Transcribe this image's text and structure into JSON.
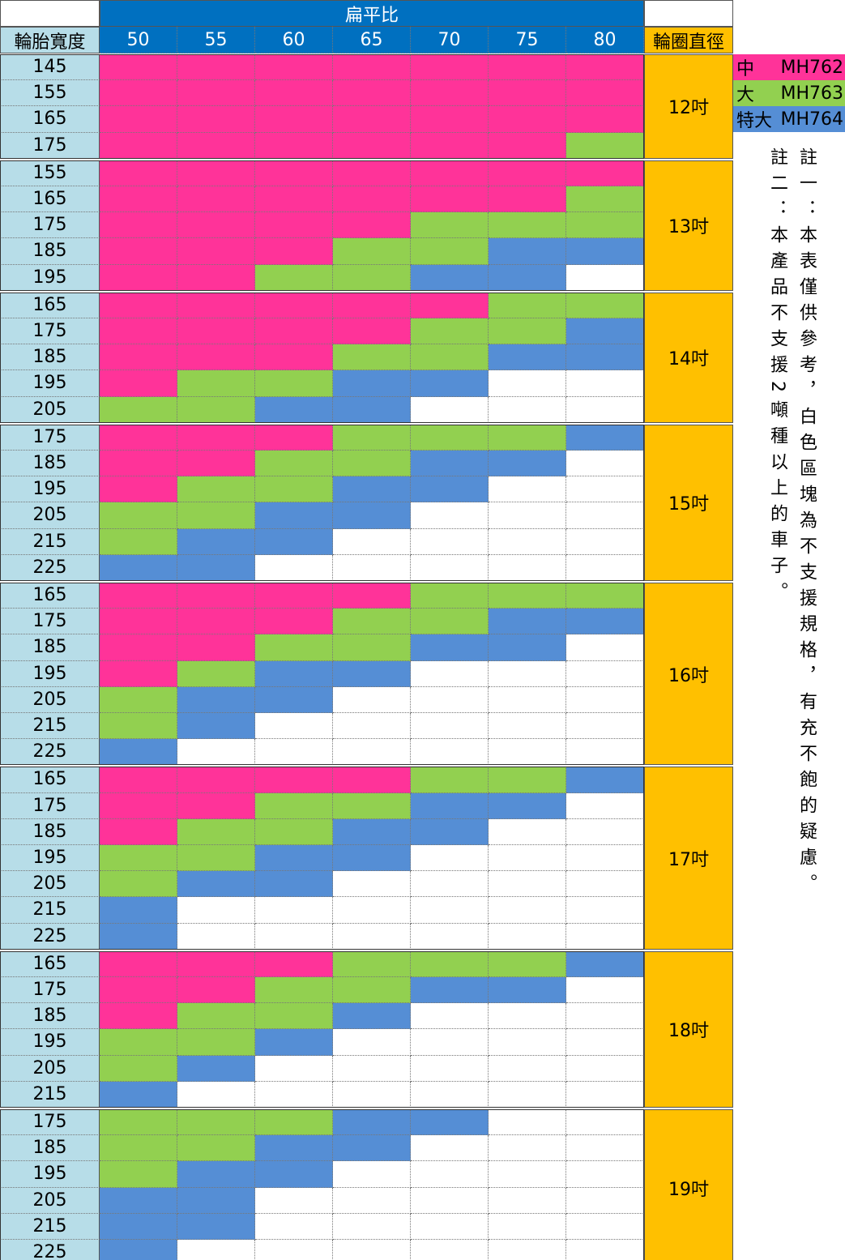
{
  "header": {
    "ratio_title": "扁平比",
    "width_title": "輪胎寬度",
    "rim_title": "輪圈直徑",
    "ratios": [
      50,
      55,
      60,
      65,
      70,
      75,
      80
    ]
  },
  "legend": [
    {
      "size": "中",
      "model": "MH762",
      "color": "#ff3399"
    },
    {
      "size": "大",
      "model": "MH763",
      "color": "#92d050"
    },
    {
      "size": "特大",
      "model": "MH764",
      "color": "#558ed5"
    }
  ],
  "groups": [
    {
      "rim": "12吋",
      "rows": [
        {
          "width": 145,
          "cells": [
            "MH762",
            "MH762",
            "MH762",
            "MH762",
            "MH762",
            "MH762",
            "MH762"
          ]
        },
        {
          "width": 155,
          "cells": [
            "MH762",
            "MH762",
            "MH762",
            "MH762",
            "MH762",
            "MH762",
            "MH762"
          ]
        },
        {
          "width": 165,
          "cells": [
            "MH762",
            "MH762",
            "MH762",
            "MH762",
            "MH762",
            "MH762",
            "MH762"
          ]
        },
        {
          "width": 175,
          "cells": [
            "MH762",
            "MH762",
            "MH762",
            "MH762",
            "MH762",
            "MH762",
            "MH763"
          ]
        }
      ]
    },
    {
      "rim": "13吋",
      "rows": [
        {
          "width": 155,
          "cells": [
            "MH762",
            "MH762",
            "MH762",
            "MH762",
            "MH762",
            "MH762",
            "MH762"
          ]
        },
        {
          "width": 165,
          "cells": [
            "MH762",
            "MH762",
            "MH762",
            "MH762",
            "MH762",
            "MH762",
            "MH763"
          ]
        },
        {
          "width": 175,
          "cells": [
            "MH762",
            "MH762",
            "MH762",
            "MH762",
            "MH763",
            "MH763",
            "MH763"
          ]
        },
        {
          "width": 185,
          "cells": [
            "MH762",
            "MH762",
            "MH762",
            "MH763",
            "MH763",
            "MH764",
            "MH764"
          ]
        },
        {
          "width": 195,
          "cells": [
            "MH762",
            "MH762",
            "MH763",
            "MH763",
            "MH764",
            "MH764",
            null
          ]
        }
      ]
    },
    {
      "rim": "14吋",
      "rows": [
        {
          "width": 165,
          "cells": [
            "MH762",
            "MH762",
            "MH762",
            "MH762",
            "MH762",
            "MH763",
            "MH763"
          ]
        },
        {
          "width": 175,
          "cells": [
            "MH762",
            "MH762",
            "MH762",
            "MH762",
            "MH763",
            "MH763",
            "MH764"
          ]
        },
        {
          "width": 185,
          "cells": [
            "MH762",
            "MH762",
            "MH762",
            "MH763",
            "MH763",
            "MH764",
            "MH764"
          ]
        },
        {
          "width": 195,
          "cells": [
            "MH762",
            "MH763",
            "MH763",
            "MH764",
            "MH764",
            null,
            null
          ]
        },
        {
          "width": 205,
          "cells": [
            "MH763",
            "MH763",
            "MH764",
            "MH764",
            null,
            null,
            null
          ]
        }
      ]
    },
    {
      "rim": "15吋",
      "rows": [
        {
          "width": 175,
          "cells": [
            "MH762",
            "MH762",
            "MH762",
            "MH763",
            "MH763",
            "MH763",
            "MH764"
          ]
        },
        {
          "width": 185,
          "cells": [
            "MH762",
            "MH762",
            "MH763",
            "MH763",
            "MH764",
            "MH764",
            null
          ]
        },
        {
          "width": 195,
          "cells": [
            "MH762",
            "MH763",
            "MH763",
            "MH764",
            "MH764",
            null,
            null
          ]
        },
        {
          "width": 205,
          "cells": [
            "MH763",
            "MH763",
            "MH764",
            "MH764",
            null,
            null,
            null
          ]
        },
        {
          "width": 215,
          "cells": [
            "MH763",
            "MH764",
            "MH764",
            null,
            null,
            null,
            null
          ]
        },
        {
          "width": 225,
          "cells": [
            "MH764",
            "MH764",
            null,
            null,
            null,
            null,
            null
          ]
        }
      ]
    },
    {
      "rim": "16吋",
      "rows": [
        {
          "width": 165,
          "cells": [
            "MH762",
            "MH762",
            "MH762",
            "MH762",
            "MH763",
            "MH763",
            "MH763"
          ]
        },
        {
          "width": 175,
          "cells": [
            "MH762",
            "MH762",
            "MH762",
            "MH763",
            "MH763",
            "MH764",
            "MH764"
          ]
        },
        {
          "width": 185,
          "cells": [
            "MH762",
            "MH762",
            "MH763",
            "MH763",
            "MH764",
            "MH764",
            null
          ]
        },
        {
          "width": 195,
          "cells": [
            "MH762",
            "MH763",
            "MH764",
            "MH764",
            null,
            null,
            null
          ]
        },
        {
          "width": 205,
          "cells": [
            "MH763",
            "MH764",
            "MH764",
            null,
            null,
            null,
            null
          ]
        },
        {
          "width": 215,
          "cells": [
            "MH763",
            "MH764",
            null,
            null,
            null,
            null,
            null
          ]
        },
        {
          "width": 225,
          "cells": [
            "MH764",
            null,
            null,
            null,
            null,
            null,
            null
          ]
        }
      ]
    },
    {
      "rim": "17吋",
      "rows": [
        {
          "width": 165,
          "cells": [
            "MH762",
            "MH762",
            "MH762",
            "MH762",
            "MH763",
            "MH763",
            "MH764"
          ]
        },
        {
          "width": 175,
          "cells": [
            "MH762",
            "MH762",
            "MH763",
            "MH763",
            "MH764",
            "MH764",
            null
          ]
        },
        {
          "width": 185,
          "cells": [
            "MH762",
            "MH763",
            "MH763",
            "MH764",
            "MH764",
            null,
            null
          ]
        },
        {
          "width": 195,
          "cells": [
            "MH763",
            "MH763",
            "MH764",
            "MH764",
            null,
            null,
            null
          ]
        },
        {
          "width": 205,
          "cells": [
            "MH763",
            "MH764",
            "MH764",
            null,
            null,
            null,
            null
          ]
        },
        {
          "width": 215,
          "cells": [
            "MH764",
            null,
            null,
            null,
            null,
            null,
            null
          ]
        },
        {
          "width": 225,
          "cells": [
            "MH764",
            null,
            null,
            null,
            null,
            null,
            null
          ]
        }
      ]
    },
    {
      "rim": "18吋",
      "rows": [
        {
          "width": 165,
          "cells": [
            "MH762",
            "MH762",
            "MH762",
            "MH763",
            "MH763",
            "MH763",
            "MH764"
          ]
        },
        {
          "width": 175,
          "cells": [
            "MH762",
            "MH762",
            "MH763",
            "MH763",
            "MH764",
            "MH764",
            null
          ]
        },
        {
          "width": 185,
          "cells": [
            "MH762",
            "MH763",
            "MH763",
            "MH764",
            null,
            null,
            null
          ]
        },
        {
          "width": 195,
          "cells": [
            "MH763",
            "MH763",
            "MH764",
            null,
            null,
            null,
            null
          ]
        },
        {
          "width": 205,
          "cells": [
            "MH763",
            "MH764",
            null,
            null,
            null,
            null,
            null
          ]
        },
        {
          "width": 215,
          "cells": [
            "MH764",
            null,
            null,
            null,
            null,
            null,
            null
          ]
        }
      ]
    },
    {
      "rim": "19吋",
      "rows": [
        {
          "width": 175,
          "cells": [
            "MH763",
            "MH763",
            "MH763",
            "MH764",
            "MH764",
            null,
            null
          ]
        },
        {
          "width": 185,
          "cells": [
            "MH763",
            "MH763",
            "MH764",
            "MH764",
            null,
            null,
            null
          ]
        },
        {
          "width": 195,
          "cells": [
            "MH763",
            "MH764",
            "MH764",
            null,
            null,
            null,
            null
          ]
        },
        {
          "width": 205,
          "cells": [
            "MH764",
            "MH764",
            null,
            null,
            null,
            null,
            null
          ]
        },
        {
          "width": 215,
          "cells": [
            "MH764",
            "MH764",
            null,
            null,
            null,
            null,
            null
          ]
        },
        {
          "width": 225,
          "cells": [
            "MH764",
            null,
            null,
            null,
            null,
            null,
            null
          ]
        }
      ]
    }
  ],
  "notes": [
    "註一：本表僅供參考，白色區塊為不支援規格，有充不飽的疑慮。",
    "註二：本產品不支援2噸種以上的車子。"
  ]
}
